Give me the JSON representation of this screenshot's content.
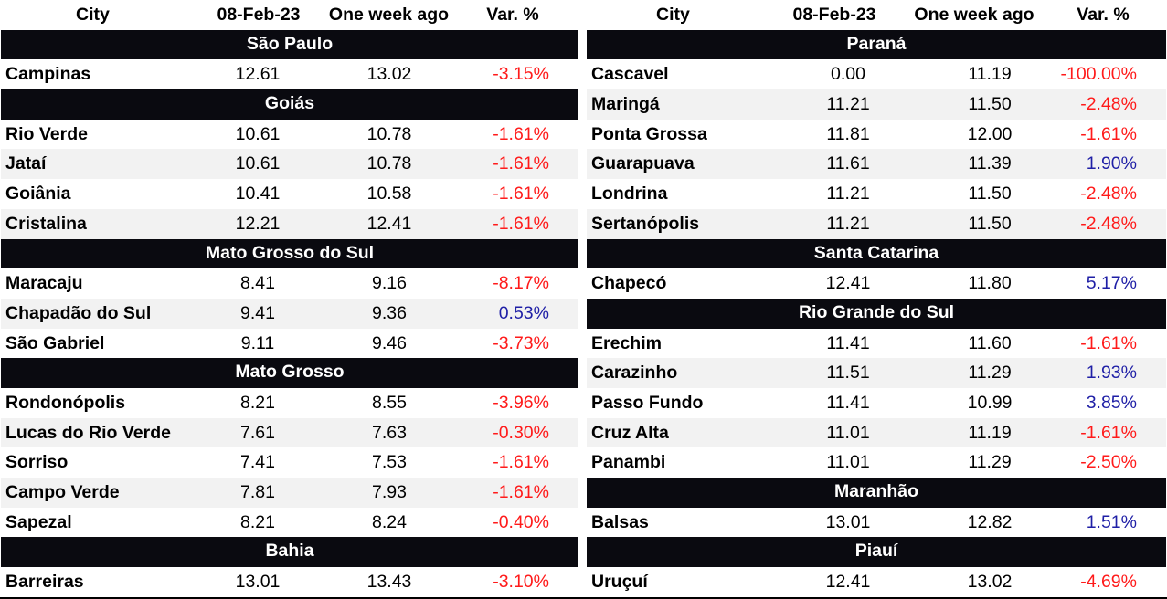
{
  "headers": {
    "city": "City",
    "date": "08-Feb-23",
    "week_ago": "One week ago",
    "var": "Var. %"
  },
  "left": [
    {
      "group": "São Paulo",
      "rows": [
        {
          "city": "Campinas",
          "d1": "12.61",
          "d2": "13.02",
          "var": "-3.15%",
          "sign": "neg"
        }
      ]
    },
    {
      "group": "Goiás",
      "rows": [
        {
          "city": "Rio Verde",
          "d1": "10.61",
          "d2": "10.78",
          "var": "-1.61%",
          "sign": "neg"
        },
        {
          "city": "Jataí",
          "d1": "10.61",
          "d2": "10.78",
          "var": "-1.61%",
          "sign": "neg"
        },
        {
          "city": "Goiânia",
          "d1": "10.41",
          "d2": "10.58",
          "var": "-1.61%",
          "sign": "neg"
        },
        {
          "city": "Cristalina",
          "d1": "12.21",
          "d2": "12.41",
          "var": "-1.61%",
          "sign": "neg"
        }
      ]
    },
    {
      "group": "Mato Grosso do Sul",
      "rows": [
        {
          "city": "Maracaju",
          "d1": "8.41",
          "d2": "9.16",
          "var": "-8.17%",
          "sign": "neg"
        },
        {
          "city": "Chapadão do Sul",
          "d1": "9.41",
          "d2": "9.36",
          "var": "0.53%",
          "sign": "pos"
        },
        {
          "city": "São Gabriel",
          "d1": "9.11",
          "d2": "9.46",
          "var": "-3.73%",
          "sign": "neg"
        }
      ]
    },
    {
      "group": "Mato Grosso",
      "rows": [
        {
          "city": "Rondonópolis",
          "d1": "8.21",
          "d2": "8.55",
          "var": "-3.96%",
          "sign": "neg"
        },
        {
          "city": "Lucas do Rio Verde",
          "d1": "7.61",
          "d2": "7.63",
          "var": "-0.30%",
          "sign": "neg"
        },
        {
          "city": "Sorriso",
          "d1": "7.41",
          "d2": "7.53",
          "var": "-1.61%",
          "sign": "neg"
        },
        {
          "city": "Campo Verde",
          "d1": "7.81",
          "d2": "7.93",
          "var": "-1.61%",
          "sign": "neg"
        },
        {
          "city": "Sapezal",
          "d1": "8.21",
          "d2": "8.24",
          "var": "-0.40%",
          "sign": "neg"
        }
      ]
    },
    {
      "group": "Bahia",
      "rows": [
        {
          "city": "Barreiras",
          "d1": "13.01",
          "d2": "13.43",
          "var": "-3.10%",
          "sign": "neg"
        }
      ]
    }
  ],
  "right": [
    {
      "group": "Paraná",
      "rows": [
        {
          "city": "Cascavel",
          "d1": "0.00",
          "d2": "11.19",
          "var": "-100.00%",
          "sign": "neg"
        },
        {
          "city": "Maringá",
          "d1": "11.21",
          "d2": "11.50",
          "var": "-2.48%",
          "sign": "neg"
        },
        {
          "city": "Ponta Grossa",
          "d1": "11.81",
          "d2": "12.00",
          "var": "-1.61%",
          "sign": "neg"
        },
        {
          "city": "Guarapuava",
          "d1": "11.61",
          "d2": "11.39",
          "var": "1.90%",
          "sign": "pos"
        },
        {
          "city": "Londrina",
          "d1": "11.21",
          "d2": "11.50",
          "var": "-2.48%",
          "sign": "neg"
        },
        {
          "city": "Sertanópolis",
          "d1": "11.21",
          "d2": "11.50",
          "var": "-2.48%",
          "sign": "neg"
        }
      ]
    },
    {
      "group": "Santa Catarina",
      "rows": [
        {
          "city": "Chapecó",
          "d1": "12.41",
          "d2": "11.80",
          "var": "5.17%",
          "sign": "pos"
        }
      ]
    },
    {
      "group": "Rio Grande do Sul",
      "rows": [
        {
          "city": "Erechim",
          "d1": "11.41",
          "d2": "11.60",
          "var": "-1.61%",
          "sign": "neg"
        },
        {
          "city": "Carazinho",
          "d1": "11.51",
          "d2": "11.29",
          "var": "1.93%",
          "sign": "pos"
        },
        {
          "city": "Passo Fundo",
          "d1": "11.41",
          "d2": "10.99",
          "var": "3.85%",
          "sign": "pos"
        },
        {
          "city": "Cruz Alta",
          "d1": "11.01",
          "d2": "11.19",
          "var": "-1.61%",
          "sign": "neg"
        },
        {
          "city": "Panambi",
          "d1": "11.01",
          "d2": "11.29",
          "var": "-2.50%",
          "sign": "neg"
        }
      ]
    },
    {
      "group": "Maranhão",
      "rows": [
        {
          "city": "Balsas",
          "d1": "13.01",
          "d2": "12.82",
          "var": "1.51%",
          "sign": "pos"
        }
      ]
    },
    {
      "group": "Piauí",
      "rows": [
        {
          "city": "Uruçuí",
          "d1": "12.41",
          "d2": "13.02",
          "var": "-4.69%",
          "sign": "neg"
        }
      ]
    }
  ]
}
